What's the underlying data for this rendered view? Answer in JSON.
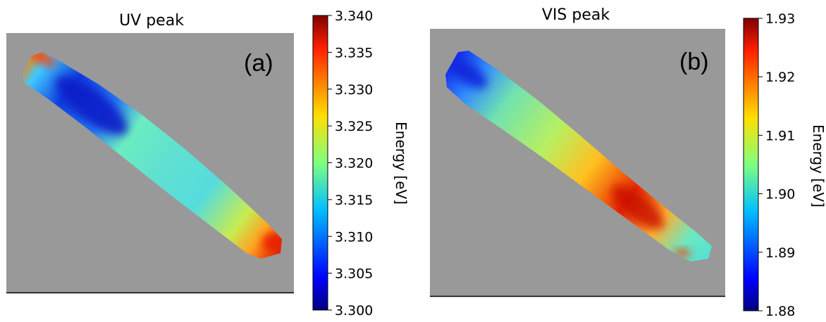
{
  "chart_data": [
    {
      "type": "heatmap",
      "title": "UV peak",
      "annotation": "(a)",
      "background_color": "#999999",
      "colormap": "jet",
      "colorbar": {
        "label": "Energy [eV]",
        "range": [
          3.3,
          3.34
        ],
        "tick_values": [
          3.3,
          3.305,
          3.31,
          3.315,
          3.32,
          3.325,
          3.33,
          3.335,
          3.34
        ],
        "tick_labels": [
          "3.300",
          "3.305",
          "3.310",
          "3.315",
          "3.320",
          "3.325",
          "3.330",
          "3.335",
          "3.340"
        ]
      },
      "map_description_values": {
        "upper_left_tip": 3.335,
        "upper_left_core": 3.303,
        "middle": 3.319,
        "lower_right_tip": 3.338
      }
    },
    {
      "type": "heatmap",
      "title": "VIS peak",
      "annotation": "(b)",
      "background_color": "#999999",
      "colormap": "jet",
      "colorbar": {
        "label": "Energy [eV]",
        "range": [
          1.88,
          1.93
        ],
        "tick_values": [
          1.88,
          1.89,
          1.9,
          1.91,
          1.92,
          1.93
        ],
        "tick_labels": [
          "1.88",
          "1.89",
          "1.90",
          "1.91",
          "1.92",
          "1.93"
        ]
      },
      "map_description_values": {
        "upper_left_tip": 1.887,
        "middle": 1.907,
        "hotspot": 1.925,
        "lower_right_tip": 1.915
      }
    }
  ]
}
